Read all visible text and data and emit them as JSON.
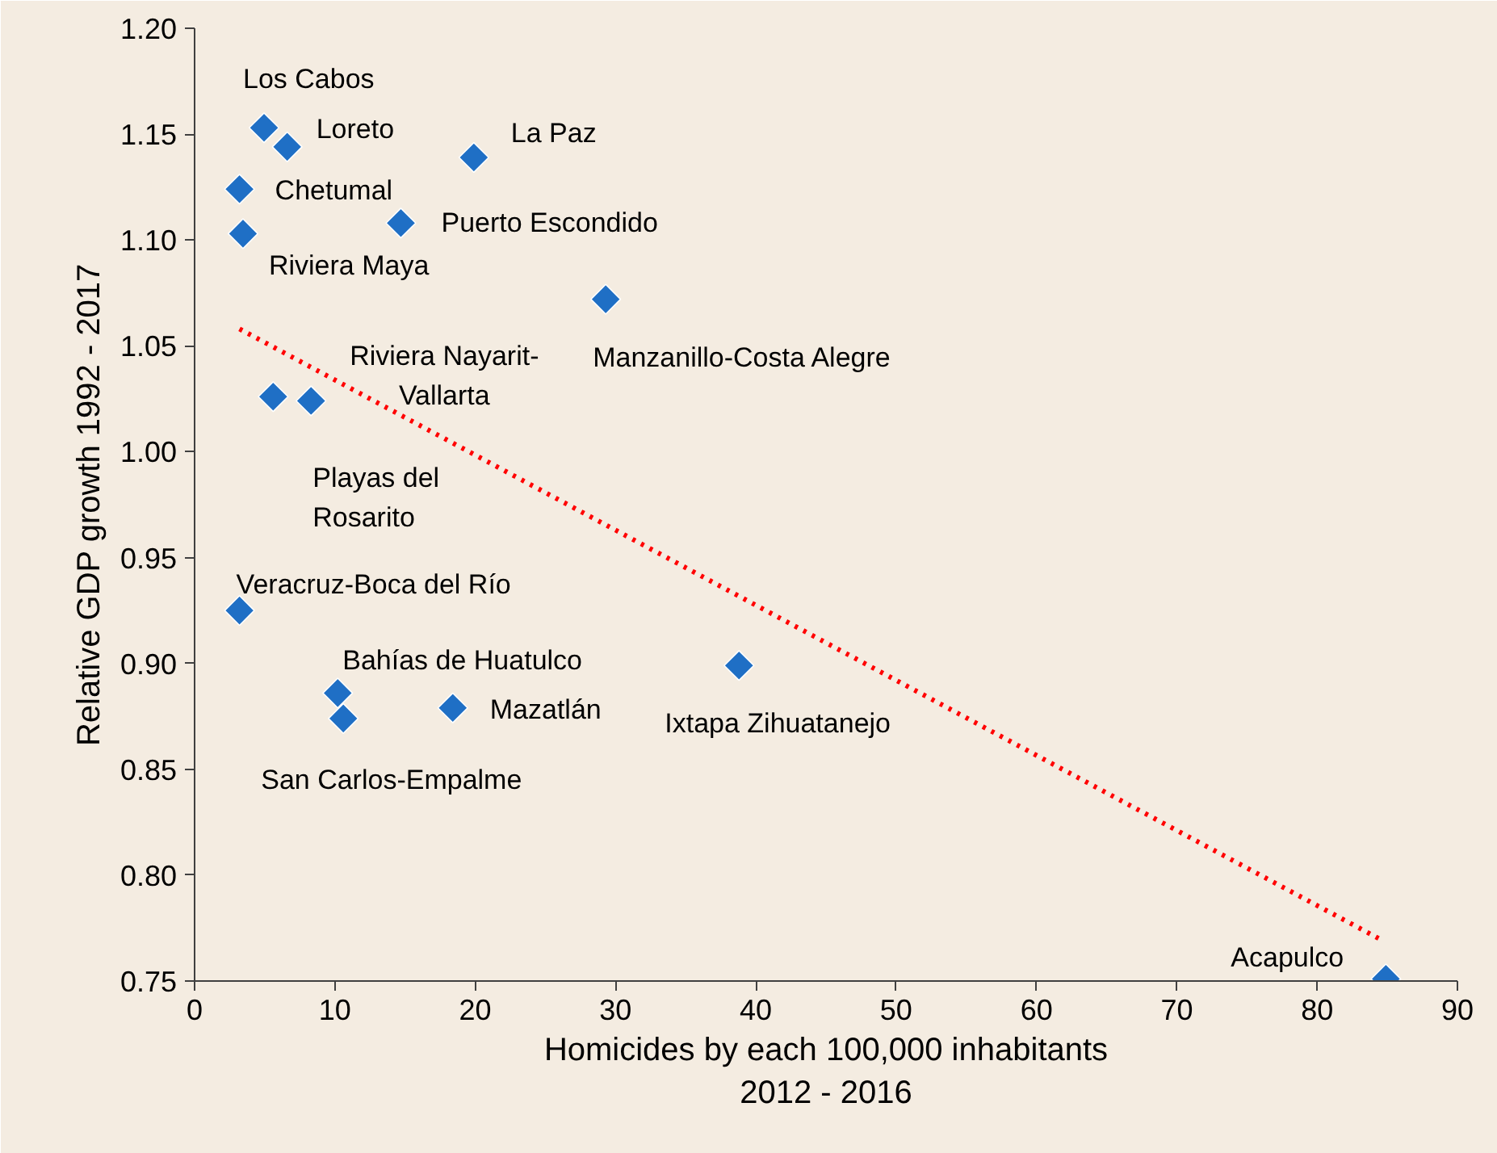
{
  "chart_data": {
    "type": "scatter",
    "xlabel": "Homicides by each 100,000 inhabitants\n2012 - 2016",
    "ylabel": "Relative GDP growth 1992 - 2017",
    "xlim": [
      0,
      90
    ],
    "xticks": [
      0,
      10,
      20,
      30,
      40,
      50,
      60,
      70,
      80,
      90
    ],
    "ylim": [
      0.75,
      1.2
    ],
    "yticks": [
      {
        "value": 0.75,
        "label": "0.75"
      },
      {
        "value": 0.8,
        "label": "0.80"
      },
      {
        "value": 0.85,
        "label": "0.85"
      },
      {
        "value": 0.9,
        "label": "0.90"
      },
      {
        "value": 0.95,
        "label": "0.95"
      },
      {
        "value": 1.0,
        "label": "1.00"
      },
      {
        "value": 1.05,
        "label": "1.05"
      },
      {
        "value": 1.1,
        "label": "1.10"
      },
      {
        "value": 1.15,
        "label": "1.15"
      },
      {
        "value": 1.2,
        "label": "1.20"
      }
    ],
    "grid": false,
    "marker": "diamond",
    "series": [
      {
        "color": "#1f6fc5",
        "x": [
          4.95,
          6.6,
          19.9,
          3.2,
          14.7,
          3.45,
          29.3,
          5.6,
          8.3,
          3.2,
          10.2,
          10.6,
          18.4,
          38.8,
          84.9
        ],
        "values": [
          1.153,
          1.144,
          1.139,
          1.124,
          1.108,
          1.103,
          1.072,
          1.026,
          1.024,
          0.925,
          0.886,
          0.874,
          0.879,
          0.899,
          0.751
        ]
      },
      {
        "type": "line",
        "color": "#ff0000",
        "line_style": "dotted",
        "marker": "none",
        "x": [
          3.2,
          84.7
        ],
        "values": [
          1.058,
          0.769
        ]
      }
    ],
    "annotations": [
      {
        "text": "Los Cabos",
        "x": 4.95,
        "y": 1.153
      },
      {
        "text": "Loreto",
        "x": 6.6,
        "y": 1.144
      },
      {
        "text": "La Paz",
        "x": 19.9,
        "y": 1.139
      },
      {
        "text": "Chetumal",
        "x": 3.2,
        "y": 1.124
      },
      {
        "text": "Puerto Escondido",
        "x": 14.7,
        "y": 1.108
      },
      {
        "text": "Riviera Maya",
        "x": 3.45,
        "y": 1.103
      },
      {
        "text": "Manzanillo-Costa Alegre",
        "x": 29.3,
        "y": 1.072
      },
      {
        "text": "Riviera Nayarit-\nVallarta",
        "x": 5.6,
        "y": 1.026
      },
      {
        "text": "Playas del\nRosarito",
        "x": 8.3,
        "y": 1.024
      },
      {
        "text": "Veracruz-Boca del Río",
        "x": 3.2,
        "y": 0.925
      },
      {
        "text": "Bahías de Huatulco",
        "x": 10.2,
        "y": 0.886
      },
      {
        "text": "San Carlos-Empalme",
        "x": 10.6,
        "y": 0.874
      },
      {
        "text": "Mazatlán",
        "x": 18.4,
        "y": 0.879
      },
      {
        "text": "Ixtapa Zihuatanejo",
        "x": 38.8,
        "y": 0.899
      },
      {
        "text": "Acapulco",
        "x": 84.9,
        "y": 0.751
      }
    ]
  }
}
